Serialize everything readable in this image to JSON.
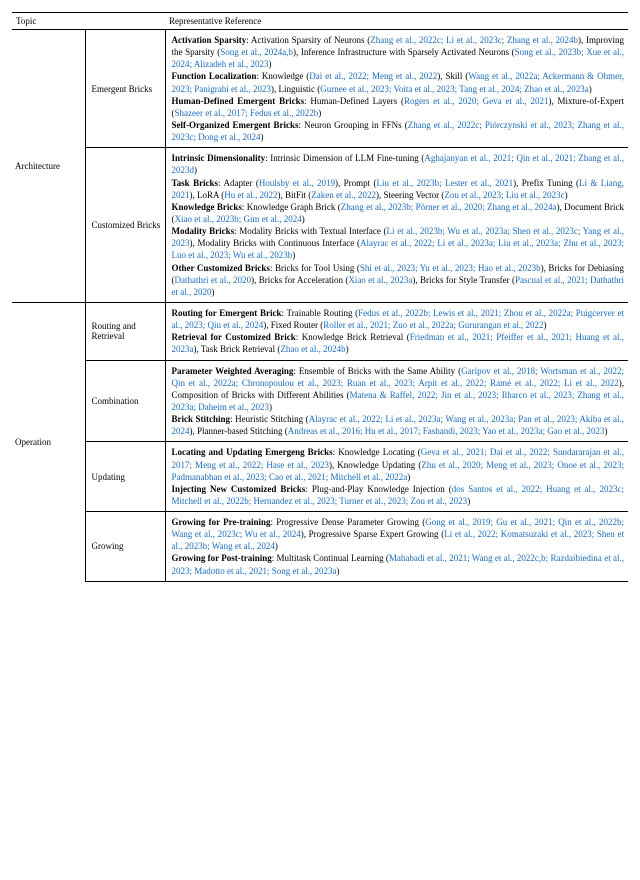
{
  "header": {
    "col1": "Topic",
    "col2": "Representative Reference"
  },
  "sections": [
    {
      "topic": "Architecture",
      "rows": [
        {
          "subtopic": "Emergent Bricks",
          "items": [
            {
              "label": "Activation Sparsity",
              "text": ": Activation Sparsity of Neurons (",
              "cites": "Zhang et al., 2022c; Li et al., 2023c; Zhang et al., 2024b",
              "text2": "), Improving the Sparsity (",
              "cites2": "Song et al., 2024a,b",
              "text3": "), Inference Infrastructure with Sparsely Activated Neurons (",
              "cites3": "Song et al., 2023b; Xue et al., 2024; Alizadeh et al., 2023",
              "text4": ")"
            },
            {
              "label": "Function Localization",
              "text": ": Knowledge (",
              "cites": "Dai et al., 2022; Meng et al., 2022",
              "text2": "), Skill (",
              "cites2": "Wang et al., 2022a; Ackermann & Ohmer, 2023; Panigrahi et al., 2023",
              "text3": "), Linguistic (",
              "cites3": "Gurnee et al., 2023; Voita et al., 2023; Tang et al., 2024; Zhao et al., 2023a",
              "text4": ")"
            },
            {
              "label": "Human-Defined Emergent Bricks",
              "text": ": Human-Defined Layers (",
              "cites": "Rogers et al., 2020; Geva et al., 2021",
              "text2": "), Mixture-of-Expert (",
              "cites2": "Shazeer et al., 2017; Fedus et al., 2022b",
              "text3": ")"
            },
            {
              "label": "Self-Organized Emergent Bricks",
              "text": ": Neuron Grouping in FFNs (",
              "cites": "Zhang et al., 2022c; Piórczynski et al., 2023; Zhang et al., 2023c; Dong et al., 2024",
              "text2": ")"
            }
          ]
        },
        {
          "subtopic": "Customized Bricks",
          "items": [
            {
              "label": "Intrinsic Dimensionality",
              "text": ": Intrinsic Dimension of LLM Fine-tuning (",
              "cites": "Aghajanyan et al., 2021; Qin et al., 2021; Zhang et al., 2023d",
              "text2": ")"
            },
            {
              "label": "Task Bricks",
              "text": ": Adapter (",
              "cites": "Houlsby et al., 2019",
              "text2": "), Prompt (",
              "cites2": "Liu et al., 2023b; Lester et al., 2021",
              "text3": "), Prefix Tuning (",
              "cites3": "Li & Liang, 2021",
              "text4": "), LoRA (",
              "cites4": "Hu et al., 2022",
              "text5": "), BitFit (",
              "cites5": "Zaken et al., 2022",
              "text6": "), Steering Vector (",
              "cites6": "Zou et al., 2023; Liu et al., 2023c",
              "text7": ")"
            },
            {
              "label": "Knowledge Bricks",
              "text": ": Knowledge Graph Brick (",
              "cites": "Zhang et al., 2023b; Pörner et al., 2020; Zhang et al., 2024a",
              "text2": "), Document Brick (",
              "cites2": "Xiao et al., 2023b; Gim et al., 2024",
              "text3": ")"
            },
            {
              "label": "Modality Bricks",
              "text": ": Modality Bricks with Textual Interface (",
              "cites": "Li et al., 2023b; Wu et al., 2023a; Shen et al., 2023c; Yang et al., 2023",
              "text2": "), Modality Bricks with Continuous Interface (",
              "cites2": "Alayrac et al., 2022; Li et al., 2023a; Liu et al., 2023a; Zhu et al., 2023; Luo et al., 2023; Wu et al., 2023b",
              "text3": ")"
            },
            {
              "label": "Other Customized Bricks",
              "text": ": Bricks for Tool Using (",
              "cites": "Shi et al., 2023; Yu et al., 2023; Hao et al., 2023b",
              "text2": "), Bricks for Debiasing (",
              "cites2": "Dathathri et al., 2020",
              "text3": "), Bricks for Acceleration (",
              "cites3": "Xiao et al., 2023a",
              "text4": "), Bricks for Style Transfer (",
              "cites4": "Pascual et al., 2021; Dathathri et al., 2020",
              "text5": ")"
            }
          ]
        }
      ]
    },
    {
      "topic": "Operation",
      "rows": [
        {
          "subtopic": "Routing and Retrieval",
          "items": [
            {
              "label": "Routing for Emergent Brick",
              "text": ": Trainable Routing (",
              "cites": "Fedus et al., 2022b; Lewis et al., 2021; Zhou et al., 2022a; Puigcerver et al., 2023; Qiu et al., 2024",
              "text2": "), Fixed Router (",
              "cites2": "Roller et al., 2021; Zuo et al., 2022a; Gururangan et al., 2022",
              "text3": ")"
            },
            {
              "label": "Retrieval for Customized Brick",
              "text": ": Knowledge Brick Retrieval (",
              "cites": "Friedman et al., 2021; Pfeiffer et al., 2021; Huang et al., 2023a",
              "text2": "), Task Brick Retrieval (",
              "cites2": "Zhao et al., 2024b",
              "text3": ")"
            }
          ]
        },
        {
          "subtopic": "Combination",
          "items": [
            {
              "label": "Parameter Weighted Averaging",
              "text": ": Ensemble of Bricks with the Same Ability (",
              "cites": "Garipov et al., 2018; Wortsman et al., 2022; Qin et al., 2022a; Chronopoulou et al., 2023; Ruan et al., 2023; Arpit et al., 2022; Ramé et al., 2022; Li et al., 2022",
              "text2": "), Composition of Bricks with Different Abilities (",
              "cites2": "Matena & Raffel, 2022; Jin et al., 2023; Ilharco et al., 2023; Zhang et al., 2023a; Daheim et al., 2023",
              "text3": ")"
            },
            {
              "label": "Brick Stitching",
              "text": ": Heuristic Stitching (",
              "cites": "Alayrac et al., 2022; Li et al., 2023a; Wang et al., 2023a; Pan et al., 2023; Akiba et al., 2024",
              "text2": "), Planner-based Stitching (",
              "cites2": "Andreas et al., 2016; Hu et al., 2017; Fashandi, 2023; Yao et al., 2023a; Gao et al., 2023",
              "text3": ")"
            }
          ]
        },
        {
          "subtopic": "Updating",
          "items": [
            {
              "label": "Locating and Updating Emergeng Bricks",
              "text": ": Knowledge Locating (",
              "cites": "Geva et al., 2021; Dai et al., 2022; Sundararajan et al., 2017; Meng et al., 2022; Hase et al., 2023",
              "text2": "), Knowledge Updating (",
              "cites2": "Zhu et al., 2020; Meng et al., 2023; Onoe et al., 2023; Padmanabhan et al., 2023; Cao et al., 2021; Mitchell et al., 2022a",
              "text3": ")"
            },
            {
              "label": "Injecting New Customized Bricks",
              "text": ": Plug-and-Play Knowledge Injection (",
              "cites": "dos Santos et al., 2022; Huang et al., 2023c; Mitchell et al., 2022b; Hernandez et al., 2023; Turner et al., 2023; Zou et al., 2023",
              "text2": ")"
            }
          ]
        },
        {
          "subtopic": "Growing",
          "items": [
            {
              "label": "Growing for Pre-training",
              "text": ": Progressive Dense Parameter Growing (",
              "cites": "Gong et al., 2019; Gu et al., 2021; Qin et al., 2022b; Wang et al., 2023c; Wu et al., 2024",
              "text2": "), Progressive Sparse Expert Growing (",
              "cites2": "Li et al., 2022; Komatsuzaki et al., 2023; Shen et al., 2023b; Wang et al., 2024",
              "text3": ")"
            },
            {
              "label": "Growing for Post-training",
              "text": ": Multitask Continual Learning (",
              "cites": "Mahabadi et al., 2021; Wang et al., 2022c,b; Razdaibiedina et al., 2023; Madotto et al., 2021; Song et al., 2023a",
              "text2": ")"
            }
          ]
        }
      ]
    }
  ]
}
